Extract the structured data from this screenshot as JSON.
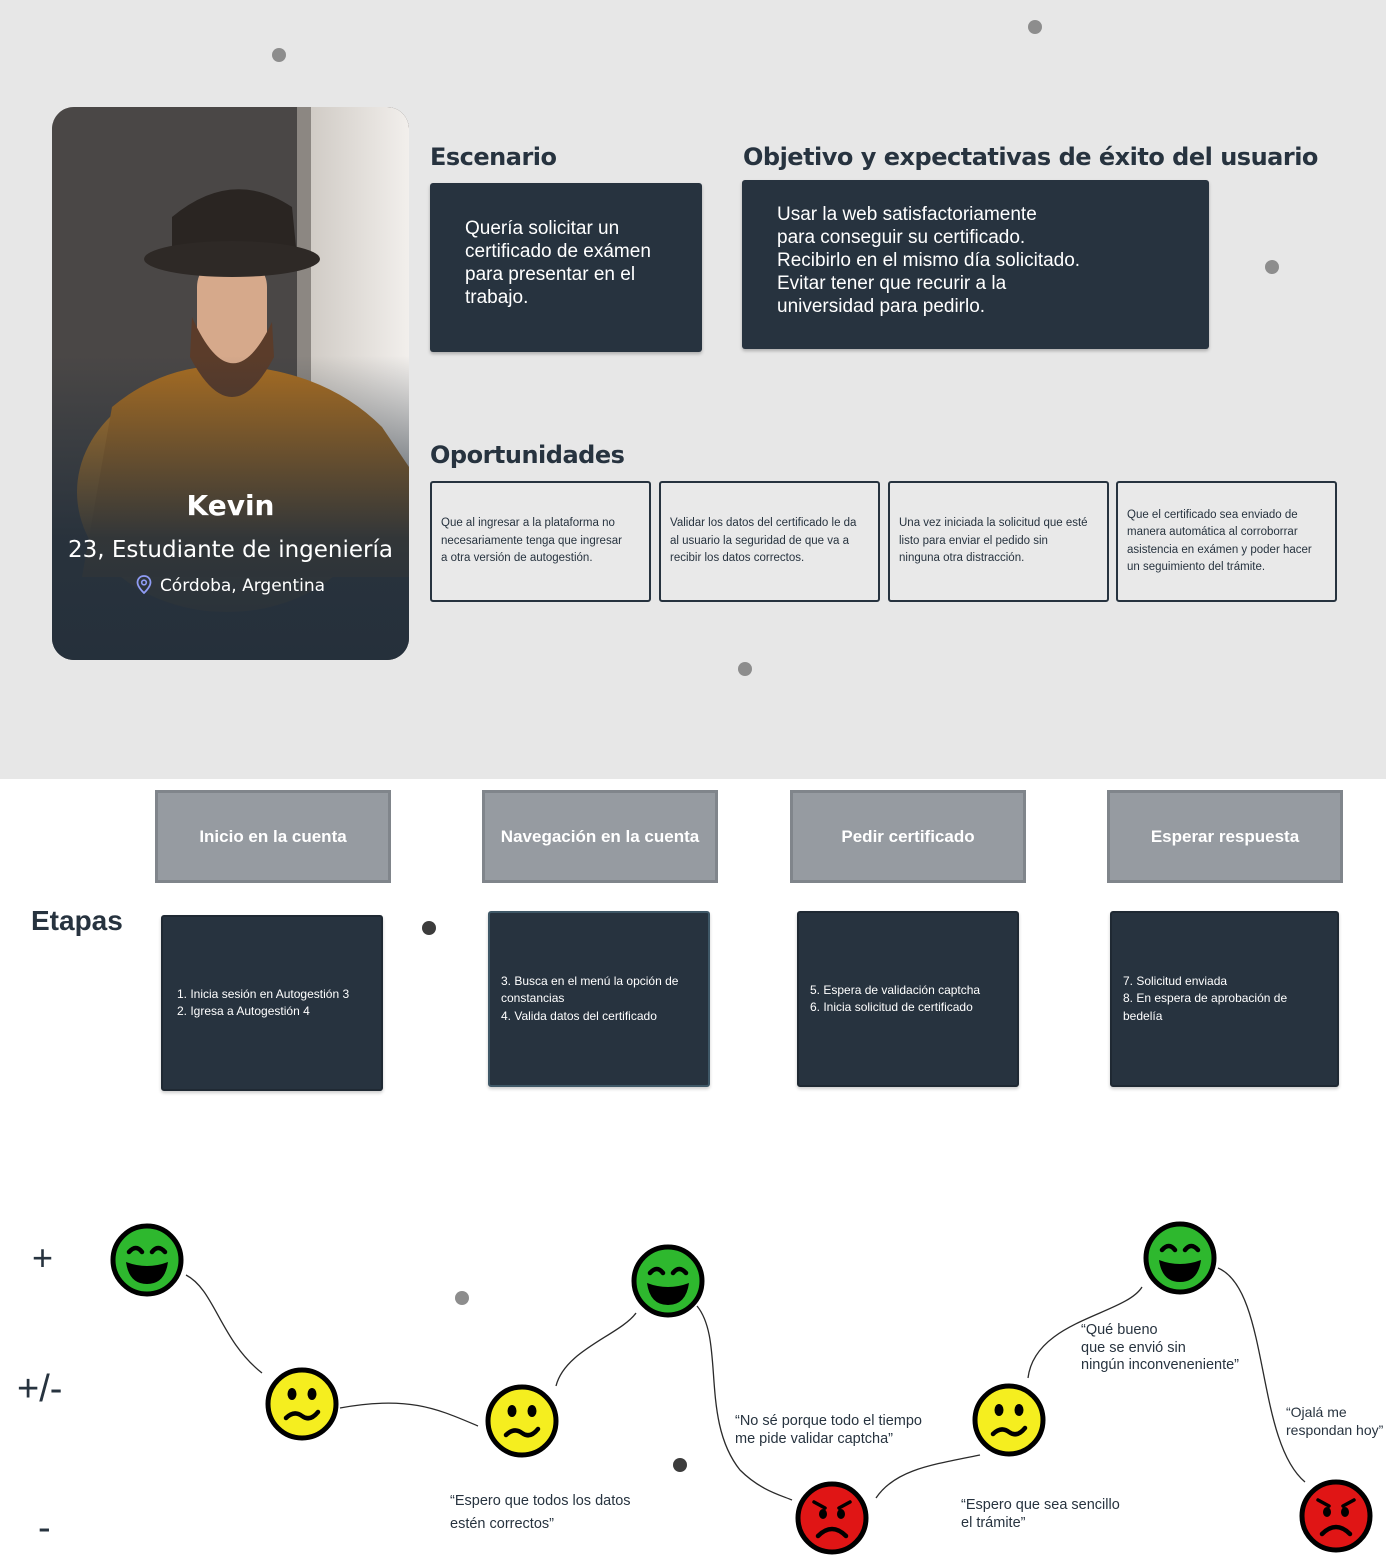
{
  "persona": {
    "name": "Kevin",
    "role": "23, Estudiante de ingeniería",
    "location": "Córdoba, Argentina"
  },
  "escenario": {
    "title": "Escenario",
    "lines": [
      "Quería solicitar un",
      "certificado de exámen",
      "para presentar en el",
      "trabajo."
    ]
  },
  "objetivo": {
    "title": "Objetivo y expectativas de éxito del usuario",
    "lines": [
      "Usar la web satisfactoriamente",
      "para conseguir su certificado.",
      "Recibirlo en el mismo día solicitado.",
      "Evitar tener que recurir a la",
      "universidad para pedirlo."
    ]
  },
  "oportunidades": {
    "title": "Oportunidades",
    "cards": [
      [
        "Que al ingresar a la plataforma no",
        "necesariamente tenga que ingresar",
        "a otra versión de autogestión."
      ],
      [
        "Validar los datos del certificado le da",
        "al usuario la seguridad de que va a",
        "recibir los datos correctos."
      ],
      [
        "Una vez iniciada la solicitud que esté",
        "listo para enviar el pedido sin",
        "ninguna otra distracción."
      ],
      [
        "Que el certificado sea enviado de",
        "manera automática al corroborrar",
        "asistencia en exámen y poder hacer",
        "un seguimiento del trámite."
      ]
    ]
  },
  "etapas": {
    "label": "Etapas",
    "stages": [
      {
        "title": "Inicio en la cuenta",
        "lines": [
          "1. Inicia sesión en Autogestión 3",
          "2. Igresa a Autogestión 4"
        ]
      },
      {
        "title": "Navegación en la cuenta",
        "lines": [
          "3.  Busca en el menú la opción de",
          "constancias",
          "4.  Valida datos del certificado"
        ]
      },
      {
        "title": "Pedir certificado",
        "lines": [
          "5.  Espera de validación captcha",
          "6.  Inicia solicitud de certificado"
        ]
      },
      {
        "title": "Esperar respuesta",
        "lines": [
          "7.  Solicitud enviada",
          "8.  En espera de aprobación de",
          "bedelía"
        ]
      }
    ]
  },
  "emotions": {
    "levels": {
      "positive": "+",
      "neutral": "+/-",
      "negative": "-"
    },
    "points": [
      {
        "mood": "happy"
      },
      {
        "mood": "neutral"
      },
      {
        "mood": "neutral"
      },
      {
        "mood": "happy"
      },
      {
        "mood": "sad"
      },
      {
        "mood": "neutral"
      },
      {
        "mood": "happy"
      },
      {
        "mood": "sad"
      }
    ],
    "quotes": [
      [
        "“Espero que todos los datos",
        "estén correctos”"
      ],
      [
        "“No sé porque todo el tiempo",
        "me pide validar captcha”"
      ],
      [
        "“Espero que sea sencillo",
        "el trámite”"
      ],
      [
        "“Qué bueno",
        "que se envió sin",
        "ningún inconveneniente”"
      ],
      [
        "“Ojalá me",
        "respondan hoy”"
      ]
    ],
    "colors": {
      "happy": "#2eb82e",
      "neutral": "#f5ee1f",
      "sad": "#e01515",
      "outline": "#000000"
    }
  }
}
